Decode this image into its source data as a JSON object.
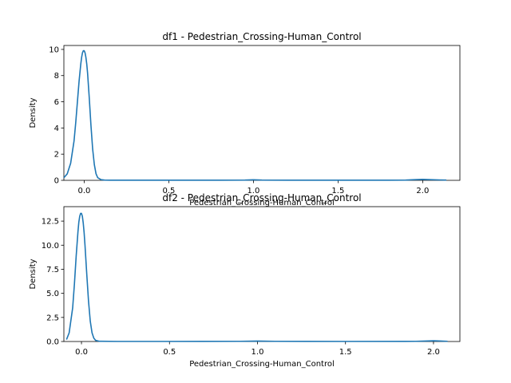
{
  "chart_data": [
    {
      "type": "line",
      "title": "df1 - Pedestrian_Crossing-Human_Control",
      "xlabel": "Pedestrian_Crossing-Human_Control",
      "ylabel": "Density",
      "xlim": [
        -0.12,
        2.22
      ],
      "ylim": [
        0,
        10.3
      ],
      "xticks": [
        "0.0",
        "0.5",
        "1.0",
        "1.5",
        "2.0"
      ],
      "yticks": [
        "0",
        "2",
        "4",
        "6",
        "8",
        "10"
      ],
      "line_color": "#1f77b4",
      "grid": false,
      "series": [
        {
          "x": [
            -0.12,
            -0.1,
            -0.08,
            -0.06,
            -0.05,
            -0.04,
            -0.03,
            -0.02,
            -0.015,
            -0.01,
            -0.005,
            0.0,
            0.005,
            0.01,
            0.015,
            0.02,
            0.03,
            0.04,
            0.05,
            0.06,
            0.07,
            0.08,
            0.1,
            0.12,
            0.15,
            0.2,
            0.4,
            0.6,
            0.8,
            0.95,
            1.0,
            1.05,
            1.2,
            1.4,
            1.6,
            1.8,
            1.9,
            1.95,
            2.0,
            2.05,
            2.1,
            2.14
          ],
          "y": [
            0.2,
            0.5,
            1.3,
            3.0,
            4.4,
            6.0,
            7.6,
            8.9,
            9.4,
            9.75,
            9.9,
            9.9,
            9.75,
            9.4,
            8.9,
            8.2,
            6.3,
            4.2,
            2.4,
            1.2,
            0.5,
            0.2,
            0.05,
            0.02,
            0.01,
            0.01,
            0.01,
            0.01,
            0.01,
            0.02,
            0.04,
            0.02,
            0.01,
            0.01,
            0.01,
            0.01,
            0.02,
            0.05,
            0.07,
            0.05,
            0.03,
            0.02
          ]
        }
      ]
    },
    {
      "type": "line",
      "title": "df2 - Pedestrian_Crossing-Human_Control",
      "xlabel": "Pedestrian_Crossing-Human_Control",
      "ylabel": "Density",
      "xlim": [
        -0.1,
        2.15
      ],
      "ylim": [
        0,
        14.0
      ],
      "xticks": [
        "0.0",
        "0.5",
        "1.0",
        "1.5",
        "2.0"
      ],
      "yticks": [
        "0.0",
        "2.5",
        "5.0",
        "7.5",
        "10.0",
        "12.5"
      ],
      "line_color": "#1f77b4",
      "grid": false,
      "series": [
        {
          "x": [
            -0.085,
            -0.07,
            -0.05,
            -0.04,
            -0.03,
            -0.02,
            -0.015,
            -0.01,
            -0.005,
            0.0,
            0.005,
            0.01,
            0.015,
            0.02,
            0.03,
            0.04,
            0.05,
            0.06,
            0.07,
            0.08,
            0.1,
            0.2,
            0.5,
            0.9,
            1.0,
            1.1,
            1.5,
            1.9,
            1.97,
            2.0,
            2.03,
            2.08
          ],
          "y": [
            0.2,
            0.9,
            3.5,
            6.0,
            8.9,
            11.4,
            12.4,
            13.0,
            13.3,
            13.3,
            13.0,
            12.3,
            11.3,
            10.0,
            7.0,
            4.2,
            2.1,
            0.9,
            0.35,
            0.12,
            0.03,
            0.01,
            0.01,
            0.02,
            0.05,
            0.02,
            0.01,
            0.02,
            0.06,
            0.08,
            0.06,
            0.02
          ]
        }
      ]
    }
  ]
}
